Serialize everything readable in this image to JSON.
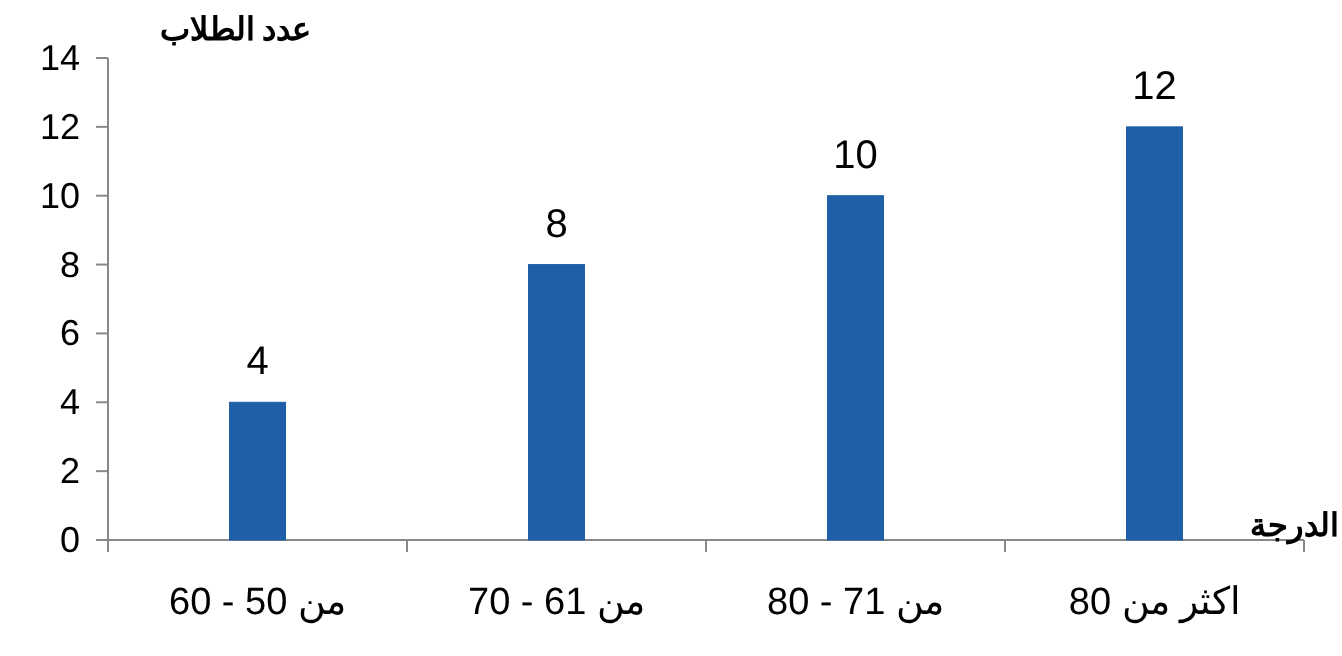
{
  "chart_data": {
    "type": "bar",
    "xlabel": "الدرجة",
    "ylabel": "عدد الطلاب",
    "categories": [
      "من 50 - 60",
      "من 61 - 70",
      "من 71 - 80",
      "اكثر من 80"
    ],
    "values": [
      4,
      8,
      10,
      12
    ],
    "color": "#1f5fa8",
    "ylim": [
      0,
      14
    ],
    "yticks": [
      0,
      2,
      4,
      6,
      8,
      10,
      12,
      14
    ],
    "grid": false,
    "data_labels": true
  }
}
